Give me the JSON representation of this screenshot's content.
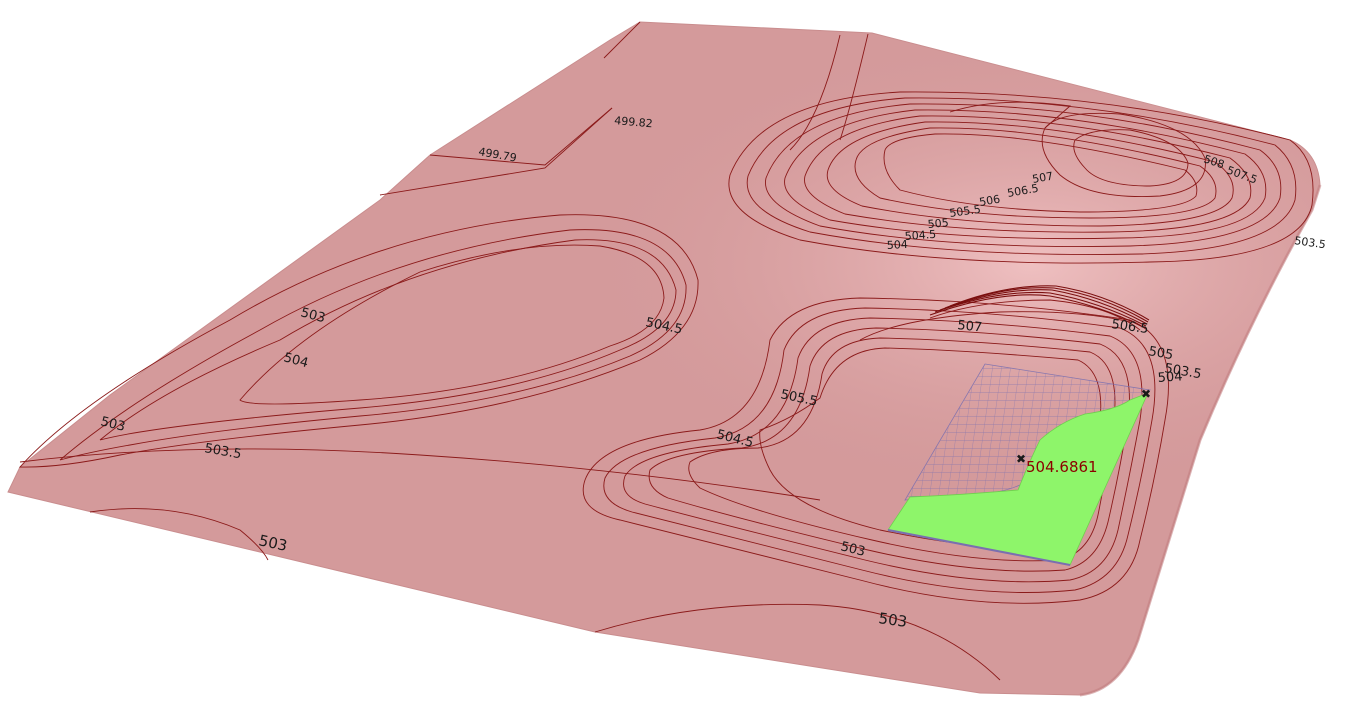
{
  "colors": {
    "terrain_fill": "#d49a9b",
    "terrain_edge": "#c98d8e",
    "contour": "#8b1a1a",
    "pad_fill": "#8ef56a",
    "pad_grid": "#7a6fb0",
    "point_marker": "#b30000"
  },
  "contour_labels": {
    "l499_82": "499.82",
    "l499_79": "499.79",
    "l507": "507",
    "l506_5": "506.5",
    "l506": "506",
    "l505_5": "505.5",
    "l505": "505",
    "l504_5": "504.5",
    "l504": "504",
    "l508": "508",
    "l507_5": "507.5",
    "l503_5_edge": "503.5",
    "l503_left": "503",
    "l504_left": "504",
    "l504_5_left": "504.5",
    "l503_far_left": "503",
    "l503_5_left": "503.5",
    "l503_bottom_left": "503",
    "l507_mid": "507",
    "l506_5_mid": "506.5",
    "l505_mid": "505",
    "l503_5_mid": "503.5",
    "l504_mid": "504",
    "l505_5_mid": "505.5",
    "l504_5_mid": "504.5",
    "l503_mid": "503",
    "l503_bottom": "503"
  },
  "point": {
    "elevation_label": "504.6861",
    "marker_icon": "x-marker-icon"
  },
  "pad": {
    "corner_icon": "x-marker-icon"
  }
}
